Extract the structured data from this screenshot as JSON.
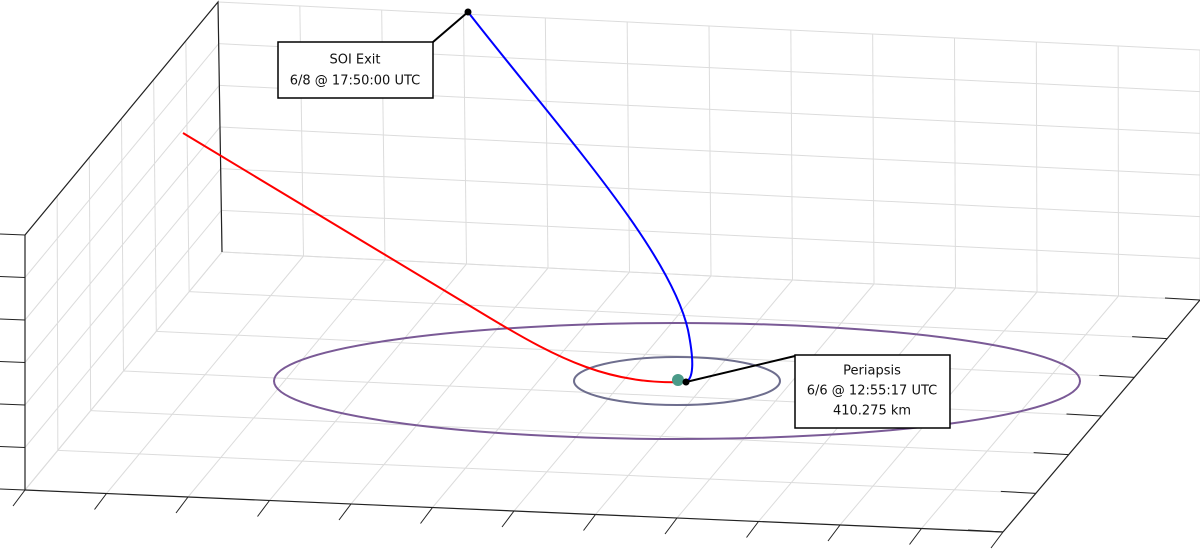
{
  "annotations": [
    {
      "lines": [
        "SOI Exit",
        "6/8 @ 17:50:00 UTC"
      ]
    },
    {
      "lines": [
        "Periapsis",
        "6/6 @ 12:55:17 UTC",
        "410.275 km"
      ]
    }
  ]
}
